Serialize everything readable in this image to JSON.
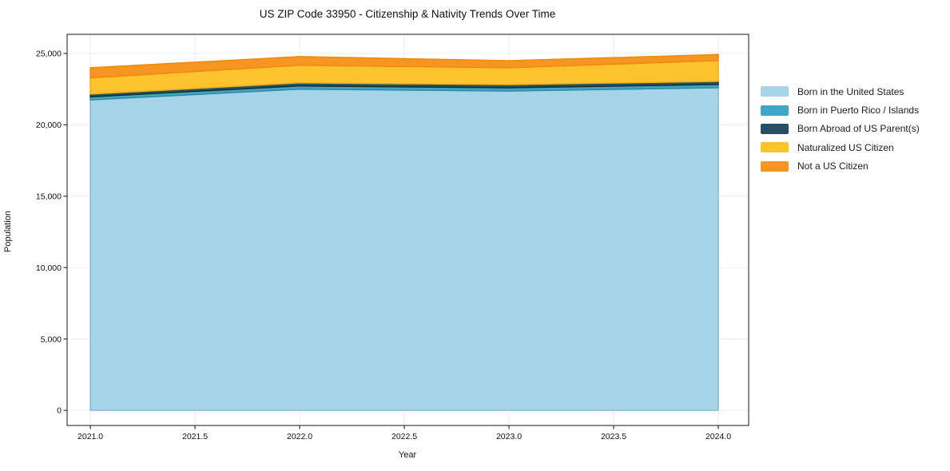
{
  "figure": {
    "title": "US ZIP Code 33950 - Citizenship & Nativity Trends Over Time",
    "x_axis_label": "Year",
    "y_axis_label": "Population"
  },
  "chart_data": {
    "type": "area",
    "stacked": true,
    "title": "US ZIP Code 33950 - Citizenship & Nativity Trends Over Time",
    "xlabel": "Year",
    "ylabel": "Population",
    "x": [
      2021,
      2022,
      2023,
      2024
    ],
    "series": [
      {
        "name": "Born in the United States",
        "color": "#a5d3e8",
        "edge_color": "#86bcd6",
        "values": [
          21750,
          22500,
          22370,
          22600
        ]
      },
      {
        "name": "Born in Puerto Rico / Islands",
        "color": "#3fa7c3",
        "edge_color": "#2f8aa3",
        "values": [
          210,
          225,
          225,
          225
        ]
      },
      {
        "name": "Born Abroad of US Parent(s)",
        "color": "#254f63",
        "edge_color": "#16303d",
        "values": [
          190,
          215,
          220,
          220
        ]
      },
      {
        "name": "Naturalized US Citizen",
        "color": "#fdc32f",
        "edge_color": "#efaf17",
        "values": [
          1140,
          1240,
          1180,
          1460
        ]
      },
      {
        "name": "Not a US Citizen",
        "color": "#f79522",
        "edge_color": "#ee8a0e",
        "values": [
          710,
          600,
          500,
          420
        ]
      }
    ],
    "xlim": [
      2020.889,
      2024.145
    ],
    "ylim": [
      -1060,
      26340
    ],
    "x_ticks": [
      2021.0,
      2021.5,
      2022.0,
      2022.5,
      2023.0,
      2023.5,
      2024.0
    ],
    "x_tick_labels": [
      "2021.0",
      "2021.5",
      "2022.0",
      "2022.5",
      "2023.0",
      "2023.5",
      "2024.0"
    ],
    "y_ticks": [
      0,
      5000,
      10000,
      15000,
      20000,
      25000
    ],
    "y_tick_labels": [
      "0",
      "5,000",
      "10,000",
      "15,000",
      "20,000",
      "25,000"
    ],
    "grid": true,
    "grid_color": "#ebebeb",
    "frame_color": "#3c3c3c",
    "tick_color": "#333333",
    "text_color": "#111111",
    "legend_position": "right-outside"
  }
}
